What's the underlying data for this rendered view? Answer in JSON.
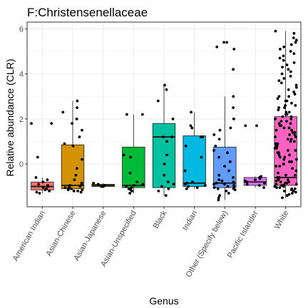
{
  "chart_data": {
    "type": "boxplot",
    "title": "F:Christensenellaceae",
    "xlabel": "Genus",
    "ylabel": "Relative abundance (CLR)",
    "ylim": [
      -1.9,
      6.3
    ],
    "yticks": [
      0,
      2,
      4,
      6
    ],
    "grid": true,
    "categories": [
      "American Indian",
      "Asian-Chinese",
      "Asian-Japanese",
      "Asian-Unspecified",
      "Black",
      "Indian",
      "Other (Specify below)",
      "Pacific Islander",
      "White"
    ],
    "colors": [
      "#F8766D",
      "#D39200",
      "#93AA00",
      "#00BA38",
      "#00C19F",
      "#00B9E3",
      "#619CFF",
      "#DB72FB",
      "#FF61C3"
    ],
    "boxes": [
      {
        "category": "American Indian",
        "q1": -1.15,
        "median": -1.0,
        "q3": -0.8,
        "whisker_low": -1.3,
        "whisker_high": -0.6
      },
      {
        "category": "Asian-Chinese",
        "q1": -1.1,
        "median": -0.95,
        "q3": 0.85,
        "whisker_low": -1.2,
        "whisker_high": 2.8
      },
      {
        "category": "Asian-Japanese",
        "q1": -1.0,
        "median": -0.95,
        "q3": -0.9,
        "whisker_low": -1.0,
        "whisker_high": -0.85
      },
      {
        "category": "Asian-Unspecified",
        "q1": -1.05,
        "median": -0.95,
        "q3": 0.75,
        "whisker_low": -1.3,
        "whisker_high": 2.2
      },
      {
        "category": "Black",
        "q1": -1.05,
        "median": 1.2,
        "q3": 1.8,
        "whisker_low": -1.4,
        "whisker_high": 3.5
      },
      {
        "category": "Indian",
        "q1": -1.0,
        "median": -0.85,
        "q3": 1.25,
        "whisker_low": -1.1,
        "whisker_high": 2.3
      },
      {
        "category": "Other (Specify below)",
        "q1": -1.05,
        "median": -0.85,
        "q3": 0.75,
        "whisker_low": -1.6,
        "whisker_high": 3.0
      },
      {
        "category": "Pacific Islander",
        "q1": -0.95,
        "median": -0.8,
        "q3": -0.6,
        "whisker_low": -1.05,
        "whisker_high": -0.55
      },
      {
        "category": "White",
        "q1": -0.95,
        "median": -0.6,
        "q3": 2.1,
        "whisker_low": -1.5,
        "whisker_high": 5.9
      }
    ],
    "points": [
      {
        "category": "American Indian",
        "values": [
          1.8,
          1.8,
          0.3,
          -0.6,
          -0.7,
          -0.8,
          -0.9,
          -0.95,
          -1.0,
          -1.05,
          -1.1,
          -1.15,
          -1.2,
          -1.25,
          -1.3
        ]
      },
      {
        "category": "Asian-Chinese",
        "values": [
          2.8,
          2.5,
          2.3,
          2.0,
          1.8,
          1.5,
          1.2,
          0.9,
          0.8,
          0.2,
          -0.2,
          -0.5,
          -0.7,
          -0.85,
          -0.9,
          -0.95,
          -1.0,
          -1.0,
          -1.05,
          -1.05,
          -1.1,
          -1.1,
          -1.15,
          -1.15,
          -1.2,
          -1.2,
          -1.25
        ]
      },
      {
        "category": "Asian-Japanese",
        "values": [
          -0.85,
          -0.9,
          -0.95,
          -1.0,
          -1.0
        ]
      },
      {
        "category": "Asian-Unspecified",
        "values": [
          2.2,
          2.2,
          0.4,
          0.3,
          -0.4,
          -0.8,
          -0.9,
          -0.95,
          -1.0,
          -1.05,
          -1.1,
          -1.15,
          -1.2,
          -1.3
        ]
      },
      {
        "category": "Black",
        "values": [
          3.5,
          3.3,
          2.8,
          2.0,
          1.2,
          1.2,
          1.0,
          0.4,
          0.0,
          -0.5,
          -0.8,
          -0.9,
          -1.0,
          -1.1,
          -1.2,
          -1.4
        ]
      },
      {
        "category": "Indian",
        "values": [
          2.3,
          1.7,
          1.6,
          1.2,
          1.2,
          0.8,
          0.3,
          -0.3,
          -0.8,
          -0.85,
          -0.9,
          -0.95,
          -1.0,
          -1.05,
          -1.1
        ]
      },
      {
        "category": "Other (Specify below)",
        "values": [
          5.4,
          5.4,
          5.2,
          5.1,
          4.2,
          3.0,
          2.5,
          2.0,
          1.6,
          1.5,
          1.3,
          1.1,
          0.8,
          0.6,
          0.5,
          0.3,
          0.1,
          -0.1,
          -0.3,
          -0.5,
          -0.6,
          -0.7,
          -0.75,
          -0.8,
          -0.85,
          -0.9,
          -0.9,
          -0.95,
          -1.0,
          -1.0,
          -1.05,
          -1.1,
          -1.1,
          -1.15,
          -1.2,
          -1.3,
          -1.4,
          -1.5,
          -1.6
        ]
      },
      {
        "category": "Pacific Islander",
        "values": [
          1.7,
          1.7,
          -0.55,
          -0.6,
          -0.65,
          -0.7,
          -0.75,
          -0.8,
          -0.85,
          -0.9,
          -0.95,
          -1.05
        ]
      },
      {
        "category": "White",
        "values": [
          5.9,
          5.8,
          5.6,
          5.5,
          5.4,
          5.3,
          5.2,
          5.1,
          5.0,
          4.9,
          4.8,
          4.7,
          4.6,
          4.5,
          4.4,
          4.3,
          4.2,
          4.1,
          4.0,
          3.9,
          3.8,
          3.7,
          3.6,
          3.5,
          3.4,
          3.3,
          3.2,
          3.1,
          3.0,
          3.0,
          2.9,
          2.8,
          2.8,
          2.7,
          2.6,
          2.6,
          2.5,
          2.5,
          2.4,
          2.3,
          2.3,
          2.2,
          2.2,
          2.1,
          2.1,
          2.0,
          2.0,
          1.9,
          1.9,
          1.8,
          1.8,
          1.7,
          1.7,
          1.6,
          1.6,
          1.5,
          1.5,
          1.4,
          1.4,
          1.3,
          1.3,
          1.2,
          1.2,
          1.1,
          1.1,
          1.0,
          1.0,
          0.9,
          0.9,
          0.8,
          0.8,
          0.7,
          0.7,
          0.6,
          0.6,
          0.5,
          0.5,
          0.4,
          0.4,
          0.3,
          0.3,
          0.2,
          0.2,
          0.1,
          0.1,
          0.0,
          0.0,
          -0.1,
          -0.1,
          -0.2,
          -0.3,
          -0.4,
          -0.5,
          -0.5,
          -0.6,
          -0.6,
          -0.7,
          -0.7,
          -0.75,
          -0.8,
          -0.8,
          -0.85,
          -0.85,
          -0.9,
          -0.9,
          -0.95,
          -0.95,
          -1.0,
          -1.0,
          -1.0,
          -1.05,
          -1.05,
          -1.1,
          -1.1,
          -1.15,
          -1.2,
          -1.2,
          -1.25,
          -1.3,
          -1.35,
          -1.4,
          -1.5
        ]
      }
    ]
  }
}
